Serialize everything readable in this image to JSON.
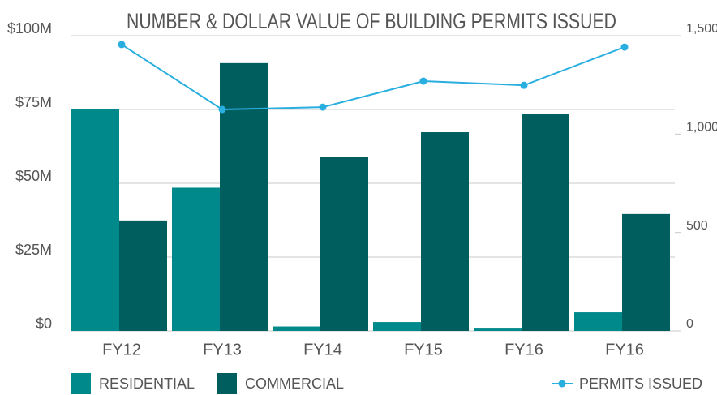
{
  "chart_data": {
    "type": "bar-line",
    "title": "NUMBER & DOLLAR VALUE OF BUILDING PERMITS ISSUED",
    "categories": [
      "FY12",
      "FY13",
      "FY14",
      "FY15",
      "FY16",
      "FY16"
    ],
    "series": [
      {
        "name": "RESIDENTIAL",
        "color": "#00898a",
        "type": "bar",
        "values": [
          75,
          48.5,
          1.5,
          3,
          0.8,
          6.3
        ]
      },
      {
        "name": "COMMERCIAL",
        "color": "#005f5e",
        "type": "bar",
        "values": [
          37.4,
          90.7,
          58.8,
          67.3,
          73.4,
          39.6
        ]
      },
      {
        "name": "PERMITS ISSUED",
        "color": "#29aee0",
        "type": "line",
        "axis": "y2",
        "values": [
          1455,
          1125,
          1137,
          1269,
          1248,
          1442
        ]
      }
    ],
    "ylim": [
      0,
      100
    ],
    "yticks": [
      {
        "value": 0,
        "label": "$0"
      },
      {
        "value": 25,
        "label": "$25M"
      },
      {
        "value": 50,
        "label": "$50M"
      },
      {
        "value": 75,
        "label": "$75M"
      },
      {
        "value": 100,
        "label": "$100M"
      }
    ],
    "y2lim": [
      0,
      1500
    ],
    "y2ticks": [
      0,
      {
        "value": 500,
        "label": "500"
      },
      {
        "value": 1000,
        "label": "1,000"
      },
      {
        "value": 1500,
        "label": "1,500"
      }
    ],
    "grid": true
  }
}
